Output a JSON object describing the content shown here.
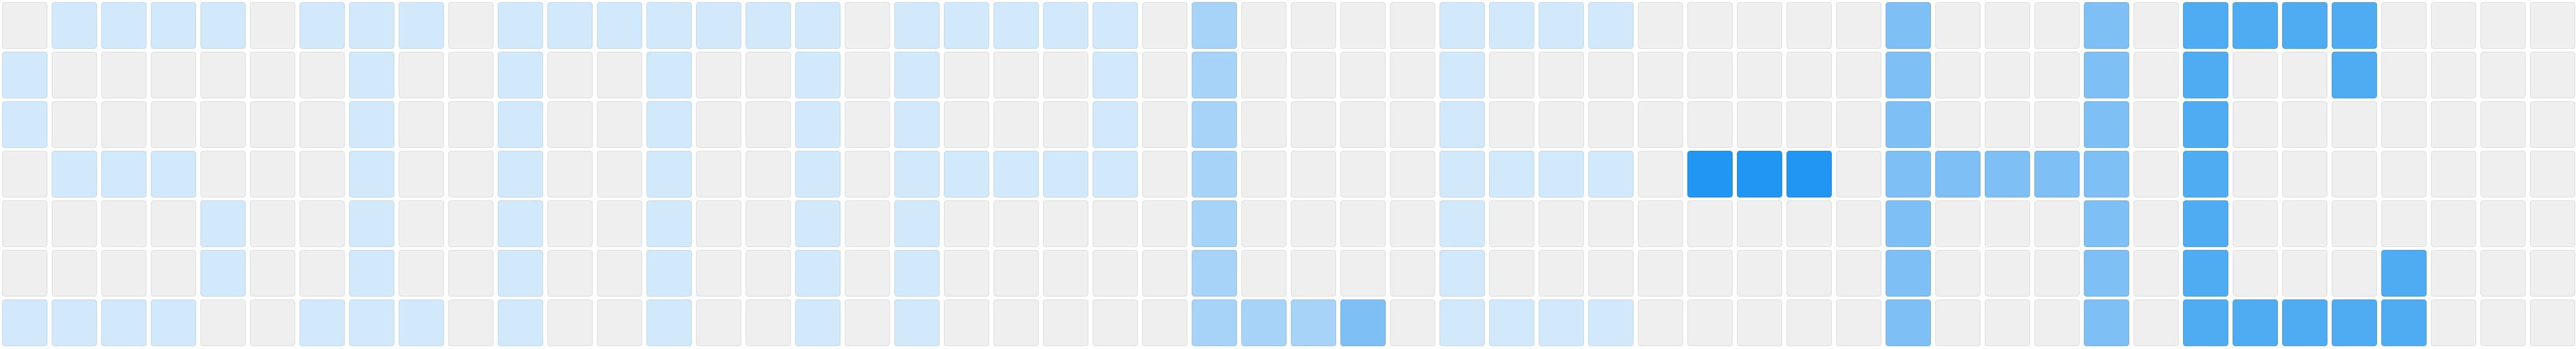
{
  "grid": {
    "rows": 7,
    "cols": 52,
    "palette": {
      "0": "#efefef",
      "1": "#d2e8fb",
      "2": "#a6d3f7",
      "3": "#7ebff5",
      "4": "#4fabf2",
      "5": "#2196f3"
    },
    "levels": [
      [
        0,
        1,
        1,
        1,
        1,
        0,
        1,
        1,
        1,
        0,
        1,
        1,
        1,
        1,
        1,
        1,
        1,
        0,
        1,
        1,
        1,
        1,
        1,
        0,
        2,
        0,
        0,
        0,
        0,
        1,
        1,
        1,
        1,
        0,
        0,
        0,
        0,
        0,
        3,
        0,
        0,
        0,
        3,
        0,
        4,
        4,
        4,
        4,
        0,
        0,
        0,
        0
      ],
      [
        1,
        0,
        0,
        0,
        0,
        0,
        0,
        1,
        0,
        0,
        1,
        0,
        0,
        1,
        0,
        0,
        1,
        0,
        1,
        0,
        0,
        0,
        1,
        0,
        2,
        0,
        0,
        0,
        0,
        1,
        0,
        0,
        0,
        0,
        0,
        0,
        0,
        0,
        3,
        0,
        0,
        0,
        3,
        0,
        4,
        0,
        0,
        4,
        0,
        0,
        0,
        0
      ],
      [
        1,
        0,
        0,
        0,
        0,
        0,
        0,
        1,
        0,
        0,
        1,
        0,
        0,
        1,
        0,
        0,
        1,
        0,
        1,
        0,
        0,
        0,
        1,
        0,
        2,
        0,
        0,
        0,
        0,
        1,
        0,
        0,
        0,
        0,
        0,
        0,
        0,
        0,
        3,
        0,
        0,
        0,
        3,
        0,
        4,
        0,
        0,
        0,
        0,
        0,
        0,
        0
      ],
      [
        0,
        1,
        1,
        1,
        0,
        0,
        0,
        1,
        0,
        0,
        1,
        0,
        0,
        1,
        0,
        0,
        1,
        0,
        1,
        1,
        1,
        1,
        1,
        0,
        2,
        0,
        0,
        0,
        0,
        1,
        1,
        1,
        1,
        0,
        5,
        5,
        5,
        0,
        3,
        3,
        3,
        3,
        3,
        0,
        4,
        0,
        0,
        0,
        0,
        0,
        0,
        0
      ],
      [
        0,
        0,
        0,
        0,
        1,
        0,
        0,
        1,
        0,
        0,
        1,
        0,
        0,
        1,
        0,
        0,
        1,
        0,
        1,
        0,
        0,
        0,
        0,
        0,
        2,
        0,
        0,
        0,
        0,
        1,
        0,
        0,
        0,
        0,
        0,
        0,
        0,
        0,
        3,
        0,
        0,
        0,
        3,
        0,
        4,
        0,
        0,
        0,
        0,
        0,
        0,
        0
      ],
      [
        0,
        0,
        0,
        0,
        1,
        0,
        0,
        1,
        0,
        0,
        1,
        0,
        0,
        1,
        0,
        0,
        1,
        0,
        1,
        0,
        0,
        0,
        0,
        0,
        2,
        0,
        0,
        0,
        0,
        1,
        0,
        0,
        0,
        0,
        0,
        0,
        0,
        0,
        3,
        0,
        0,
        0,
        3,
        0,
        4,
        0,
        0,
        0,
        4,
        0,
        0,
        0
      ],
      [
        1,
        1,
        1,
        1,
        0,
        0,
        1,
        1,
        1,
        0,
        1,
        0,
        0,
        1,
        0,
        0,
        1,
        0,
        1,
        0,
        0,
        0,
        0,
        0,
        2,
        2,
        2,
        3,
        0,
        1,
        1,
        1,
        1,
        0,
        0,
        0,
        0,
        0,
        3,
        0,
        0,
        0,
        3,
        0,
        4,
        4,
        4,
        4,
        4,
        0,
        0,
        0
      ]
    ]
  }
}
